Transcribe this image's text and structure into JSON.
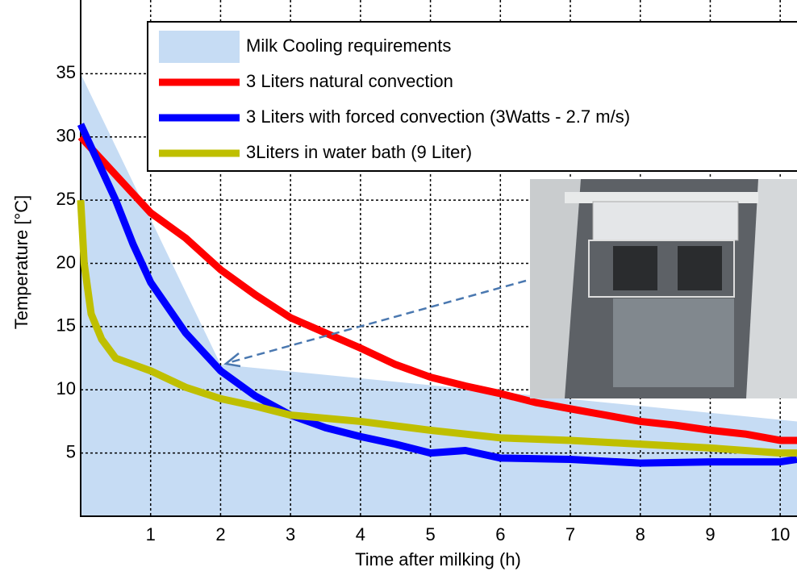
{
  "chart_data": {
    "type": "line",
    "xlabel": "Time after milking (h)",
    "ylabel": "Temperature [°C]",
    "xlim": [
      0,
      10.24
    ],
    "ylim": [
      0,
      40
    ],
    "xticks": [
      1,
      2,
      3,
      4,
      5,
      6,
      7,
      8,
      9,
      10
    ],
    "yticks": [
      5,
      10,
      15,
      20,
      25,
      30,
      35
    ],
    "grid": true,
    "legend": "upper right",
    "series": [
      {
        "name": "Milk Cooling requirements",
        "color": "#c6dcf4",
        "fill": true,
        "x": [
          0,
          2,
          10.24
        ],
        "values": [
          35,
          12,
          7.5
        ]
      },
      {
        "name": "3 Liters natural convection",
        "color": "#ff0000",
        "fill": false,
        "x": [
          0,
          0.5,
          1,
          1.5,
          2,
          2.5,
          3,
          3.5,
          4,
          4.5,
          5,
          5.5,
          6,
          6.5,
          7,
          7.5,
          8,
          8.5,
          9,
          9.5,
          10,
          10.24
        ],
        "values": [
          30,
          27,
          24,
          22,
          19.5,
          17.5,
          15.7,
          14.5,
          13.3,
          12,
          11,
          10.3,
          9.7,
          9,
          8.5,
          8,
          7.5,
          7.2,
          6.8,
          6.5,
          6,
          6
        ]
      },
      {
        "name": "3 Liters with forced convection (3Watts - 2.7 m/s)",
        "color": "#0000ff",
        "fill": false,
        "x": [
          0,
          0.25,
          0.5,
          0.75,
          1,
          1.5,
          2,
          2.5,
          3,
          3.5,
          4,
          4.5,
          5,
          5.5,
          6,
          7,
          8,
          9,
          10,
          10.24
        ],
        "values": [
          31,
          28,
          25,
          21.5,
          18.5,
          14.5,
          11.5,
          9.5,
          8,
          7,
          6.3,
          5.7,
          5,
          5.2,
          4.6,
          4.5,
          4.2,
          4.3,
          4.3,
          4.5
        ]
      },
      {
        "name": "3Liters in water bath (9 Liter)",
        "color": "#bfbf00",
        "fill": false,
        "x": [
          0,
          0.05,
          0.15,
          0.3,
          0.5,
          1,
          1.5,
          2,
          2.5,
          3,
          4,
          5,
          6,
          7,
          8,
          9,
          10,
          10.24
        ],
        "values": [
          25,
          20,
          16,
          14,
          12.5,
          11.5,
          10.2,
          9.3,
          8.7,
          8,
          7.5,
          6.8,
          6.2,
          6,
          5.7,
          5.4,
          5,
          5
        ]
      }
    ]
  }
}
